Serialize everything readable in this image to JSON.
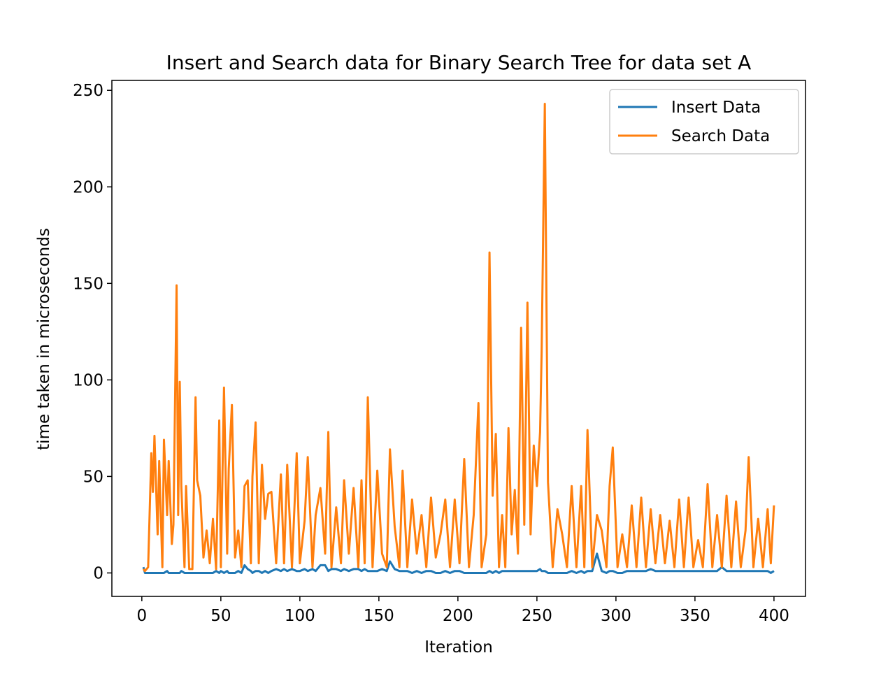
{
  "chart_data": {
    "type": "line",
    "title": "Insert and Search data for Binary Search Tree for data set A",
    "xlabel": "Iteration",
    "ylabel": "time taken in microseconds",
    "x": [
      1,
      2,
      4,
      6,
      7,
      8,
      10,
      11,
      13,
      14,
      16,
      17,
      19,
      20,
      22,
      23,
      24,
      25,
      27,
      28,
      30,
      32,
      34,
      35,
      37,
      39,
      41,
      43,
      45,
      47,
      49,
      50,
      52,
      54,
      55,
      57,
      59,
      61,
      63,
      65,
      67,
      69,
      70,
      72,
      74,
      76,
      78,
      80,
      82,
      85,
      88,
      90,
      92,
      95,
      98,
      100,
      103,
      105,
      108,
      110,
      113,
      116,
      118,
      120,
      123,
      126,
      128,
      131,
      134,
      137,
      139,
      141,
      143,
      146,
      149,
      152,
      155,
      157,
      160,
      163,
      165,
      168,
      171,
      174,
      177,
      180,
      183,
      186,
      189,
      192,
      195,
      198,
      201,
      204,
      207,
      210,
      213,
      215,
      218,
      220,
      222,
      224,
      226,
      228,
      230,
      232,
      234,
      236,
      238,
      240,
      242,
      244,
      246,
      248,
      250,
      252,
      253,
      255,
      257,
      260,
      263,
      266,
      269,
      272,
      275,
      278,
      280,
      282,
      285,
      288,
      291,
      294,
      296,
      298,
      301,
      304,
      307,
      310,
      313,
      316,
      319,
      322,
      325,
      328,
      331,
      334,
      337,
      340,
      343,
      346,
      349,
      352,
      355,
      358,
      361,
      364,
      367,
      370,
      373,
      376,
      379,
      382,
      384,
      387,
      390,
      393,
      396,
      398,
      400
    ],
    "series": [
      {
        "name": "Insert Data",
        "color": "#1f77b4",
        "values": [
          3,
          0,
          0,
          0,
          0,
          0,
          0,
          0,
          0,
          0,
          1,
          0,
          0,
          0,
          0,
          0,
          0,
          1,
          0,
          0,
          0,
          0,
          0,
          0,
          0,
          0,
          0,
          0,
          0,
          1,
          0,
          1,
          0,
          1,
          0,
          0,
          0,
          1,
          0,
          4,
          2,
          1,
          0,
          1,
          1,
          0,
          1,
          0,
          1,
          2,
          1,
          2,
          1,
          2,
          1,
          1,
          2,
          1,
          2,
          1,
          4,
          4,
          1,
          2,
          2,
          1,
          2,
          1,
          2,
          2,
          1,
          2,
          1,
          1,
          1,
          2,
          1,
          6,
          2,
          1,
          1,
          1,
          0,
          1,
          0,
          1,
          1,
          0,
          0,
          1,
          0,
          1,
          1,
          0,
          0,
          0,
          0,
          0,
          0,
          1,
          0,
          1,
          0,
          1,
          1,
          1,
          1,
          1,
          1,
          1,
          1,
          1,
          1,
          1,
          1,
          2,
          1,
          1,
          0,
          0,
          0,
          0,
          0,
          1,
          0,
          1,
          0,
          1,
          1,
          10,
          1,
          0,
          1,
          1,
          0,
          0,
          1,
          1,
          1,
          1,
          1,
          2,
          1,
          1,
          1,
          1,
          1,
          1,
          1,
          1,
          1,
          1,
          1,
          1,
          1,
          1,
          3,
          1,
          1,
          1,
          1,
          1,
          1,
          1,
          1,
          1,
          1,
          0,
          1
        ]
      },
      {
        "name": "Search Data",
        "color": "#ff7f0e",
        "values": [
          2,
          1,
          3,
          62,
          42,
          71,
          20,
          58,
          3,
          69,
          30,
          58,
          15,
          25,
          149,
          30,
          99,
          45,
          3,
          45,
          2,
          2,
          91,
          48,
          40,
          8,
          22,
          5,
          28,
          2,
          79,
          3,
          96,
          10,
          54,
          87,
          8,
          22,
          3,
          45,
          48,
          5,
          50,
          78,
          5,
          56,
          28,
          41,
          42,
          5,
          51,
          5,
          56,
          3,
          62,
          5,
          27,
          60,
          3,
          30,
          44,
          10,
          73,
          3,
          34,
          5,
          48,
          10,
          44,
          3,
          48,
          5,
          91,
          3,
          53,
          10,
          3,
          64,
          24,
          3,
          53,
          3,
          38,
          10,
          30,
          3,
          39,
          8,
          20,
          38,
          3,
          38,
          5,
          59,
          3,
          30,
          88,
          3,
          20,
          166,
          40,
          72,
          3,
          30,
          3,
          75,
          20,
          43,
          10,
          127,
          25,
          140,
          20,
          66,
          45,
          73,
          115,
          243,
          47,
          3,
          33,
          20,
          3,
          45,
          3,
          45,
          3,
          74,
          3,
          30,
          22,
          3,
          45,
          65,
          3,
          20,
          3,
          35,
          3,
          39,
          3,
          33,
          5,
          30,
          5,
          27,
          3,
          38,
          3,
          39,
          3,
          17,
          3,
          46,
          3,
          30,
          3,
          40,
          3,
          37,
          3,
          22,
          60,
          3,
          28,
          3,
          33,
          5,
          35
        ]
      }
    ],
    "xlim": [
      -18.95,
      419.95
    ],
    "xticks": [
      0,
      50,
      100,
      150,
      200,
      250,
      300,
      350,
      400
    ],
    "ylim": [
      -12.15,
      255.15
    ],
    "yticks": [
      0,
      50,
      100,
      150,
      200,
      250
    ],
    "legend": "upper right"
  }
}
